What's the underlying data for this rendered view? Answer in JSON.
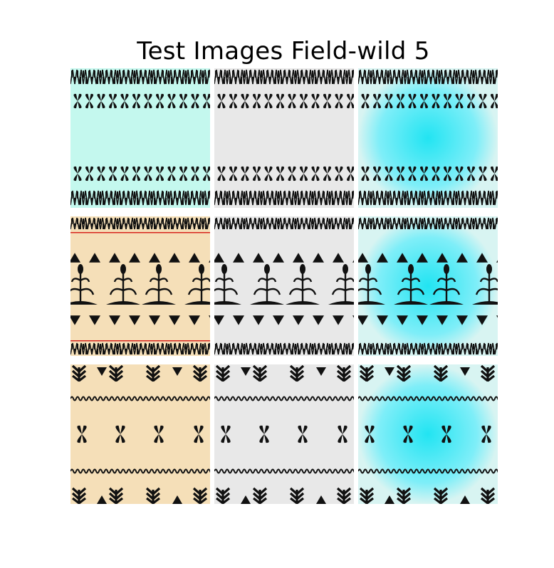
{
  "figure": {
    "title": "Test Images Field-wild 5"
  },
  "grid": {
    "rows": [
      {
        "pattern": "leaf-band",
        "base_color": "#c4f8ee"
      },
      {
        "pattern": "corn-stalk",
        "base_color": "#f5dfb8"
      },
      {
        "pattern": "tree-band",
        "base_color": "#f5dfb8"
      }
    ],
    "columns": [
      {
        "variant": "original",
        "tint": null
      },
      {
        "variant": "grayscale",
        "tint": "#e8e8e8"
      },
      {
        "variant": "cyan-reconstruction",
        "tint": "#8ef0f8"
      }
    ]
  }
}
